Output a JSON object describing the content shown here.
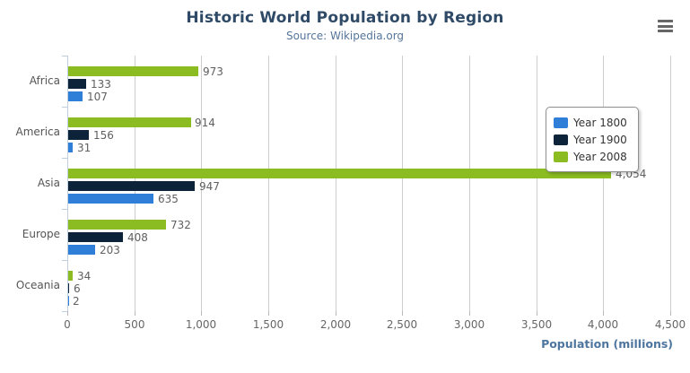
{
  "chart_data": {
    "type": "bar",
    "orientation": "horizontal",
    "title": "Historic World Population by Region",
    "subtitle": "Source: Wikipedia.org",
    "xlabel": "Population (millions)",
    "categories": [
      "Africa",
      "America",
      "Asia",
      "Europe",
      "Oceania"
    ],
    "series": [
      {
        "name": "Year 1800",
        "color": "#2f7ed8",
        "values": [
          107,
          31,
          635,
          203,
          2
        ]
      },
      {
        "name": "Year 1900",
        "color": "#0d233a",
        "values": [
          133,
          156,
          947,
          408,
          6
        ]
      },
      {
        "name": "Year 2008",
        "color": "#8bbc21",
        "values": [
          973,
          914,
          4054,
          732,
          34
        ]
      }
    ],
    "bar_order_top_to_bottom": [
      "Year 2008",
      "Year 1900",
      "Year 1800"
    ],
    "xlim": [
      0,
      4500
    ],
    "x_ticks": [
      0,
      500,
      1000,
      1500,
      2000,
      2500,
      3000,
      3500,
      4000,
      4500
    ],
    "grid": true,
    "data_labels": true,
    "legend_position": "right"
  },
  "ui": {
    "menu_icon": "context-menu-hamburger",
    "colors": {
      "title": "#2f4a67",
      "subtitle": "#55759b",
      "axis_title": "#4d759e",
      "gridline": "#cdcdcd",
      "category_axis_line": "#c0d0e0",
      "data_label": "#606060"
    }
  }
}
